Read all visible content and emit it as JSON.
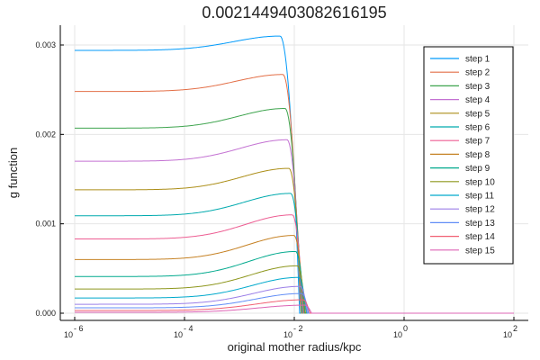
{
  "chart_data": {
    "type": "line",
    "title": "0.0021449403082616195",
    "xlabel": "original mother radius/kpc",
    "ylabel": "g function",
    "xscale": "log",
    "xlim": [
      1e-06,
      100
    ],
    "ylim": [
      0,
      0.003
    ],
    "x_ticks": [
      {
        "value": 1e-06,
        "base": "10",
        "exp": "- 6"
      },
      {
        "value": 0.0001,
        "base": "10",
        "exp": "- 4"
      },
      {
        "value": 0.01,
        "base": "10",
        "exp": "- 2"
      },
      {
        "value": 1,
        "base": "10",
        "exp": "0"
      },
      {
        "value": 100,
        "base": "10",
        "exp": "2"
      }
    ],
    "y_ticks": [
      {
        "value": 0,
        "label": "0.000"
      },
      {
        "value": 0.001,
        "label": "0.001"
      },
      {
        "value": 0.002,
        "label": "0.002"
      },
      {
        "value": 0.003,
        "label": "0.003"
      }
    ],
    "grid": true,
    "legend_position": "top-right",
    "series_shape": "flat plateau at small radius, bump peaking before a sharp drop to zero near the cutoff radius, then zero out to 100 kpc",
    "series": [
      {
        "name": "step 1",
        "color": "#009AFA",
        "plateau": 0.00294,
        "peak": 0.0031,
        "peak_x": 0.0055,
        "cutoff_x": 0.0125
      },
      {
        "name": "step 2",
        "color": "#E36F47",
        "plateau": 0.00248,
        "peak": 0.00267,
        "peak_x": 0.0062,
        "cutoff_x": 0.013
      },
      {
        "name": "step 3",
        "color": "#3EA44E",
        "plateau": 0.00207,
        "peak": 0.00229,
        "peak_x": 0.0068,
        "cutoff_x": 0.0133
      },
      {
        "name": "step 4",
        "color": "#C371D2",
        "plateau": 0.0017,
        "peak": 0.00194,
        "peak_x": 0.0074,
        "cutoff_x": 0.0136
      },
      {
        "name": "step 5",
        "color": "#AC8E18",
        "plateau": 0.00138,
        "peak": 0.00162,
        "peak_x": 0.008,
        "cutoff_x": 0.0139
      },
      {
        "name": "step 6",
        "color": "#00AAAE",
        "plateau": 0.00109,
        "peak": 0.00134,
        "peak_x": 0.0086,
        "cutoff_x": 0.0142
      },
      {
        "name": "step 7",
        "color": "#ED5E93",
        "plateau": 0.00083,
        "peak": 0.0011,
        "peak_x": 0.0092,
        "cutoff_x": 0.0146
      },
      {
        "name": "step 8",
        "color": "#C68225",
        "plateau": 0.0006,
        "peak": 0.00087,
        "peak_x": 0.0099,
        "cutoff_x": 0.015
      },
      {
        "name": "step 9",
        "color": "#00A98D",
        "plateau": 0.00041,
        "peak": 0.00069,
        "peak_x": 0.0106,
        "cutoff_x": 0.0154
      },
      {
        "name": "step 10",
        "color": "#8E971E",
        "plateau": 0.00027,
        "peak": 0.00053,
        "peak_x": 0.0113,
        "cutoff_x": 0.016
      },
      {
        "name": "step 11",
        "color": "#00A9CC",
        "plateau": 0.00017,
        "peak": 0.0004,
        "peak_x": 0.012,
        "cutoff_x": 0.0166
      },
      {
        "name": "step 12",
        "color": "#9B7FE8",
        "plateau": 0.0001,
        "peak": 0.0003,
        "peak_x": 0.0128,
        "cutoff_x": 0.0173
      },
      {
        "name": "step 13",
        "color": "#618DF6",
        "plateau": 6e-05,
        "peak": 0.00022,
        "peak_x": 0.0136,
        "cutoff_x": 0.0181
      },
      {
        "name": "step 14",
        "color": "#F16072",
        "plateau": 3e-05,
        "peak": 0.00015,
        "peak_x": 0.0145,
        "cutoff_x": 0.0191
      },
      {
        "name": "step 15",
        "color": "#DD64B5",
        "plateau": 1e-05,
        "peak": 9e-05,
        "peak_x": 0.0155,
        "cutoff_x": 0.0205
      }
    ]
  }
}
